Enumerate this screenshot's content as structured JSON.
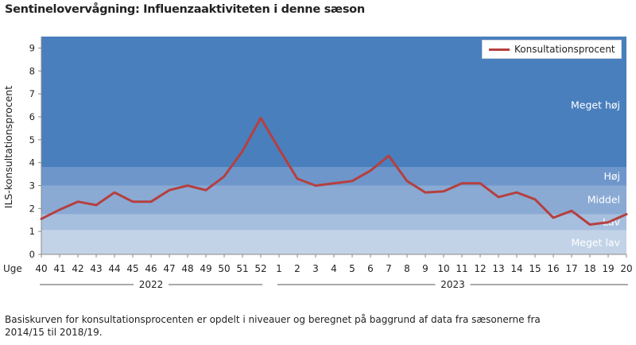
{
  "title": "Sentinelovervågning: Influenzaaktiviteten i denne sæson",
  "chart_data": {
    "type": "line",
    "ylabel": "ILS-konsultationsprocent",
    "xlabel_prefix": "Uge",
    "ylim": [
      0,
      9.5
    ],
    "yticks": [
      "0",
      "1",
      "2",
      "3",
      "4",
      "5",
      "6",
      "7",
      "8",
      "9"
    ],
    "categories": [
      "40",
      "41",
      "42",
      "43",
      "44",
      "45",
      "46",
      "47",
      "48",
      "49",
      "50",
      "51",
      "52",
      "1",
      "2",
      "3",
      "4",
      "5",
      "6",
      "7",
      "8",
      "9",
      "10",
      "11",
      "12",
      "13",
      "14",
      "15",
      "16",
      "17",
      "18",
      "19",
      "20"
    ],
    "series": [
      {
        "name": "Konsultationsprocent",
        "color": "#b5403f",
        "values": [
          1.55,
          1.95,
          2.3,
          2.15,
          2.7,
          2.3,
          2.3,
          2.8,
          3.0,
          2.8,
          3.4,
          4.5,
          5.95,
          4.6,
          3.3,
          3.0,
          3.1,
          3.2,
          3.65,
          4.3,
          3.2,
          2.7,
          2.75,
          3.1,
          3.1,
          2.5,
          2.7,
          2.4,
          1.6,
          1.9,
          1.3,
          1.4,
          1.75
        ]
      }
    ],
    "bands": [
      {
        "label": "Meget lav",
        "from": 0,
        "to": 1.05,
        "color": "#c3d3e7"
      },
      {
        "label": "Lav",
        "from": 1.05,
        "to": 1.75,
        "color": "#a7bfde"
      },
      {
        "label": "Middel",
        "from": 1.75,
        "to": 3.0,
        "color": "#8aaad4"
      },
      {
        "label": "Høj",
        "from": 3.0,
        "to": 3.8,
        "color": "#6e96cb"
      },
      {
        "label": "Meget høj",
        "from": 3.8,
        "to": 9.5,
        "color": "#4a7fbd"
      }
    ],
    "year_groups": [
      {
        "label": "2022",
        "from": "40",
        "to": "52"
      },
      {
        "label": "2023",
        "from": "1",
        "to": "20"
      }
    ],
    "legend_position": "top-right",
    "grid": false
  },
  "footnote": {
    "line1": "Basiskurven for konsultationsprocenten er opdelt i niveauer og beregnet på baggrund af data fra sæsonerne fra",
    "line2": "2014/15 til 2018/19."
  }
}
